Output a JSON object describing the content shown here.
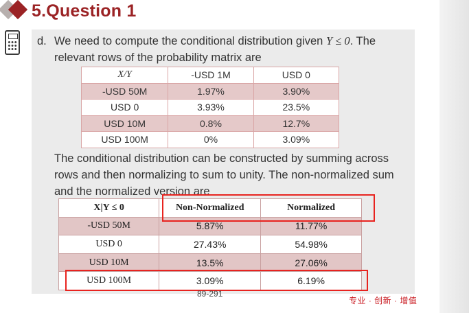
{
  "header": {
    "title": "5.Question 1"
  },
  "intro": {
    "marker": "d.",
    "line1_pre": "We need to compute the conditional distribution given ",
    "line1_math": "Y ≤ 0",
    "line1_post": ". The",
    "line2": "relevant rows of the probability matrix are"
  },
  "table1": {
    "header": [
      "X/Y",
      "-USD 1M",
      "USD 0"
    ],
    "rows": [
      [
        "-USD 50M",
        "1.97%",
        "3.90%"
      ],
      [
        "USD 0",
        "3.93%",
        "23.5%"
      ],
      [
        "USD 10M",
        "0.8%",
        "12.7%"
      ],
      [
        "USD 100M",
        "0%",
        "3.09%"
      ]
    ]
  },
  "middle": {
    "line1": "The conditional distribution can be constructed by summing across",
    "line2": "rows and then normalizing to sum to unity. The non-normalized sum",
    "line3": "and the normalized version are"
  },
  "table2": {
    "header": [
      "X|Y ≤ 0",
      "Non-Normalized",
      "Normalized"
    ],
    "rows": [
      [
        "-USD 50M",
        "5.87%",
        "11.77%"
      ],
      [
        "USD 0",
        "27.43%",
        "54.98%"
      ],
      [
        "USD 10M",
        "13.5%",
        "27.06%"
      ],
      [
        "USD 100M",
        "3.09%",
        "6.19%"
      ]
    ]
  },
  "footer": {
    "page_number": "89-291",
    "brand": "专业 · 创新 · 增值"
  },
  "colors": {
    "title": "#9b2325",
    "highlight_box": "#e8231f",
    "table_rose": "#e5c9c9"
  }
}
